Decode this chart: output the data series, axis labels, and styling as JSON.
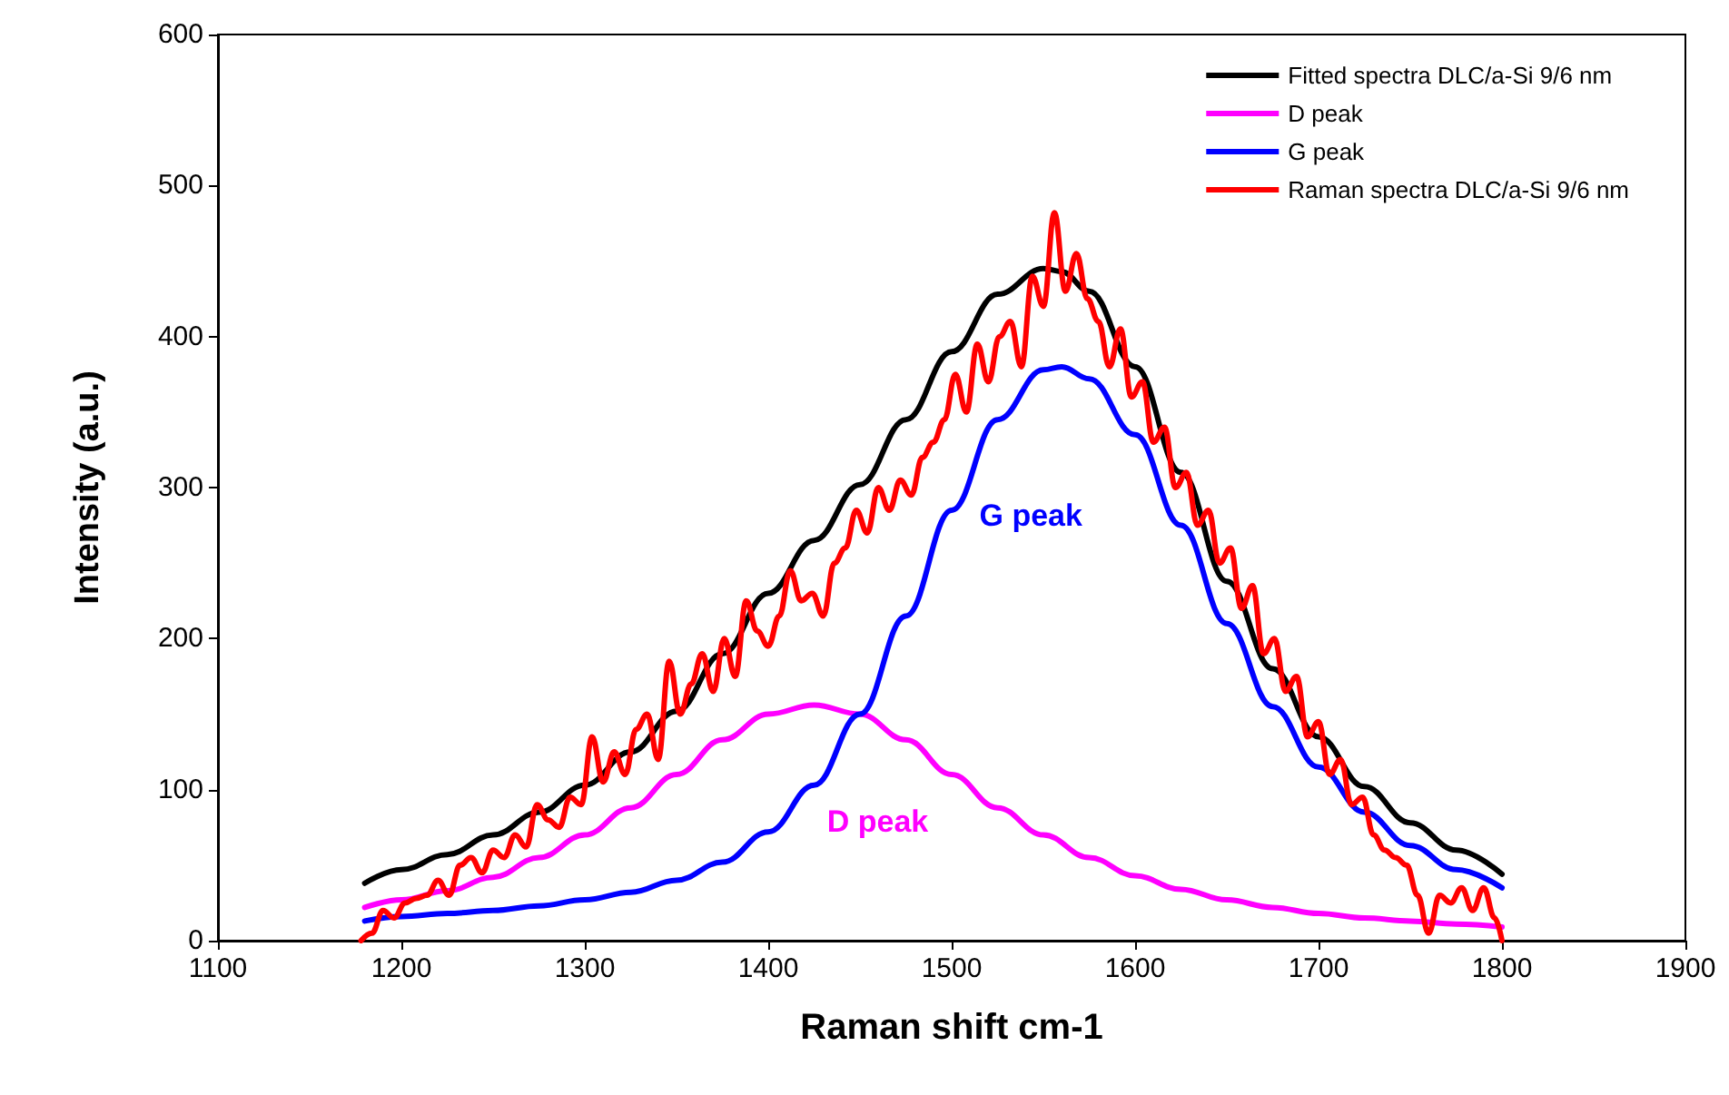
{
  "chart_data": {
    "type": "line",
    "xlabel": "Raman shift cm-1",
    "ylabel": "Intensity (a.u.)",
    "xlim": [
      1100,
      1900
    ],
    "xticks": [
      1100,
      1200,
      1300,
      1400,
      1500,
      1600,
      1700,
      1800,
      1900
    ],
    "ylim": [
      0,
      600
    ],
    "yticks": [
      0,
      100,
      200,
      300,
      400,
      500,
      600
    ],
    "grid": false,
    "legend": "top right",
    "marker": "none",
    "line_style": "solid",
    "annotations": [
      "G peak",
      "D peak"
    ],
    "series": [
      {
        "name": "Fitted spectra DLC/a-Si 9/6 nm",
        "color": "#000000",
        "x": [
          1180,
          1200,
          1225,
          1250,
          1275,
          1300,
          1325,
          1350,
          1375,
          1400,
          1425,
          1450,
          1475,
          1500,
          1525,
          1550,
          1560,
          1575,
          1600,
          1625,
          1650,
          1675,
          1700,
          1725,
          1750,
          1775,
          1800
        ],
        "values": [
          38,
          47,
          57,
          70,
          85,
          103,
          125,
          152,
          190,
          230,
          265,
          302,
          345,
          390,
          428,
          445,
          443,
          430,
          380,
          310,
          238,
          180,
          135,
          102,
          78,
          60,
          44
        ]
      },
      {
        "name": "D peak",
        "color": "#ff00ff",
        "x": [
          1180,
          1200,
          1225,
          1250,
          1275,
          1300,
          1325,
          1350,
          1375,
          1400,
          1425,
          1450,
          1475,
          1500,
          1525,
          1550,
          1575,
          1600,
          1625,
          1650,
          1675,
          1700,
          1725,
          1750,
          1775,
          1800
        ],
        "values": [
          22,
          27,
          33,
          42,
          55,
          70,
          88,
          110,
          133,
          150,
          156,
          150,
          133,
          110,
          88,
          70,
          55,
          43,
          34,
          27,
          22,
          18,
          15,
          13,
          11,
          9
        ]
      },
      {
        "name": "G peak",
        "color": "#0000ff",
        "x": [
          1180,
          1200,
          1225,
          1250,
          1275,
          1300,
          1325,
          1350,
          1375,
          1400,
          1425,
          1450,
          1475,
          1500,
          1525,
          1550,
          1560,
          1575,
          1600,
          1625,
          1650,
          1675,
          1700,
          1725,
          1750,
          1775,
          1800
        ],
        "values": [
          13,
          16,
          18,
          20,
          23,
          27,
          32,
          40,
          52,
          72,
          103,
          150,
          215,
          285,
          345,
          378,
          380,
          372,
          335,
          275,
          210,
          155,
          115,
          85,
          63,
          47,
          35
        ]
      },
      {
        "name": "Raman spectra DLC/a-Si 9/6 nm",
        "color": "#ff0000",
        "x": [
          1178,
          1184,
          1190,
          1196,
          1202,
          1208,
          1214,
          1220,
          1226,
          1232,
          1238,
          1244,
          1250,
          1256,
          1262,
          1268,
          1274,
          1280,
          1286,
          1292,
          1298,
          1304,
          1310,
          1316,
          1322,
          1328,
          1334,
          1340,
          1346,
          1352,
          1358,
          1364,
          1370,
          1376,
          1382,
          1388,
          1394,
          1400,
          1406,
          1412,
          1418,
          1424,
          1430,
          1436,
          1442,
          1448,
          1454,
          1460,
          1466,
          1472,
          1478,
          1484,
          1490,
          1496,
          1502,
          1508,
          1514,
          1520,
          1526,
          1532,
          1538,
          1544,
          1550,
          1556,
          1562,
          1568,
          1574,
          1580,
          1586,
          1592,
          1598,
          1604,
          1610,
          1616,
          1622,
          1628,
          1634,
          1640,
          1646,
          1652,
          1658,
          1664,
          1670,
          1676,
          1682,
          1688,
          1694,
          1700,
          1706,
          1712,
          1718,
          1724,
          1730,
          1736,
          1742,
          1748,
          1754,
          1760,
          1766,
          1772,
          1778,
          1784,
          1790,
          1796,
          1800
        ],
        "values": [
          0,
          5,
          20,
          15,
          25,
          28,
          30,
          40,
          30,
          50,
          55,
          45,
          60,
          55,
          70,
          62,
          90,
          80,
          75,
          95,
          90,
          135,
          105,
          125,
          110,
          140,
          150,
          120,
          185,
          150,
          170,
          190,
          165,
          200,
          175,
          225,
          205,
          195,
          215,
          245,
          225,
          230,
          215,
          250,
          260,
          285,
          270,
          300,
          285,
          305,
          295,
          320,
          330,
          345,
          375,
          350,
          395,
          370,
          400,
          410,
          380,
          440,
          420,
          482,
          430,
          455,
          425,
          410,
          380,
          405,
          360,
          370,
          330,
          340,
          300,
          310,
          275,
          285,
          250,
          260,
          220,
          235,
          190,
          200,
          165,
          175,
          135,
          145,
          110,
          120,
          90,
          95,
          70,
          60,
          55,
          50,
          30,
          5,
          30,
          25,
          35,
          20,
          35,
          15,
          0
        ]
      }
    ]
  }
}
